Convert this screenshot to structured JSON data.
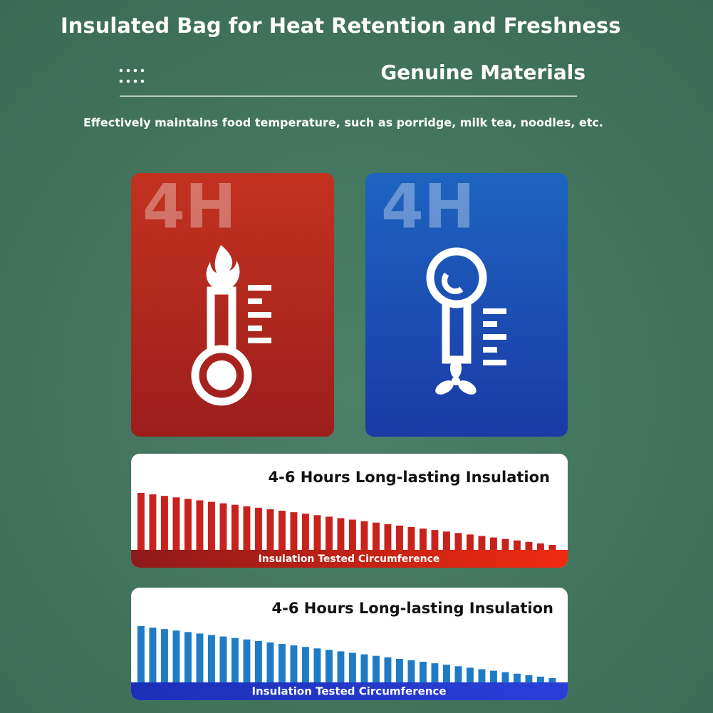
{
  "header": {
    "title": "Insulated Bag for Heat Retention and Freshness",
    "subtitle": "Genuine Materials",
    "description": "Effectively maintains food temperature, such as porridge, milk tea, noodles, etc."
  },
  "cards": [
    {
      "label": "4H"
    },
    {
      "label": "4H"
    }
  ],
  "panels": [
    {
      "title": "4-6 Hours Long-lasting Insulation",
      "footer": "Insulation Tested Circumference"
    },
    {
      "title": "4-6 Hours Long-lasting Insulation",
      "footer": "Insulation Tested Circumference"
    }
  ]
}
